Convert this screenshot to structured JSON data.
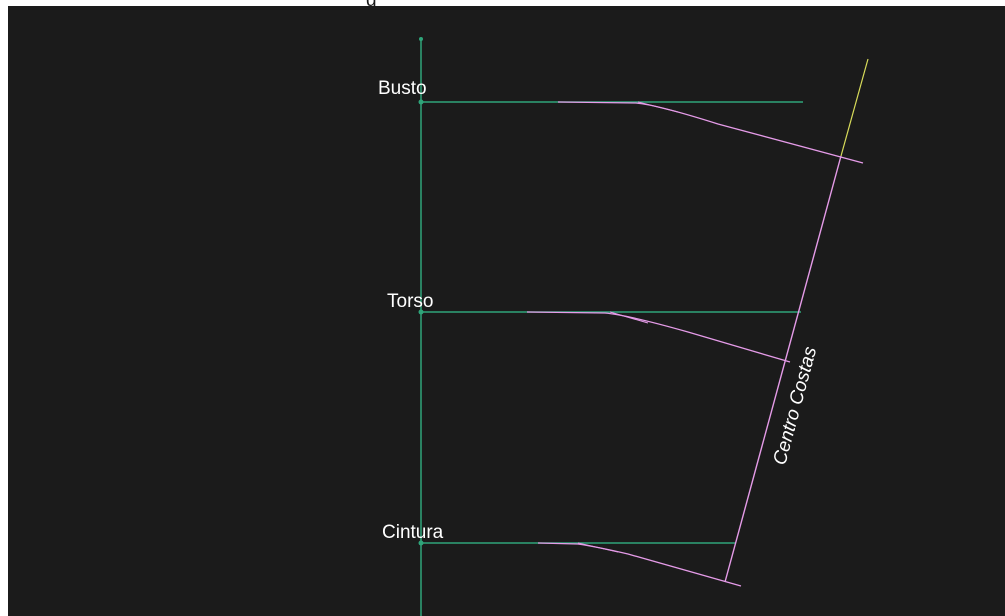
{
  "header": {
    "clipped_text": "g"
  },
  "diagram": {
    "labels": {
      "busto": "Busto",
      "torso": "Torso",
      "cintura": "Cintura",
      "centro_costas": "Centro Costas"
    },
    "colors": {
      "background": "#1b1b1b",
      "guide": "#2fa57a",
      "curve": "#e59be8",
      "accent": "#d8dc5a",
      "text": "#ffffff"
    }
  }
}
